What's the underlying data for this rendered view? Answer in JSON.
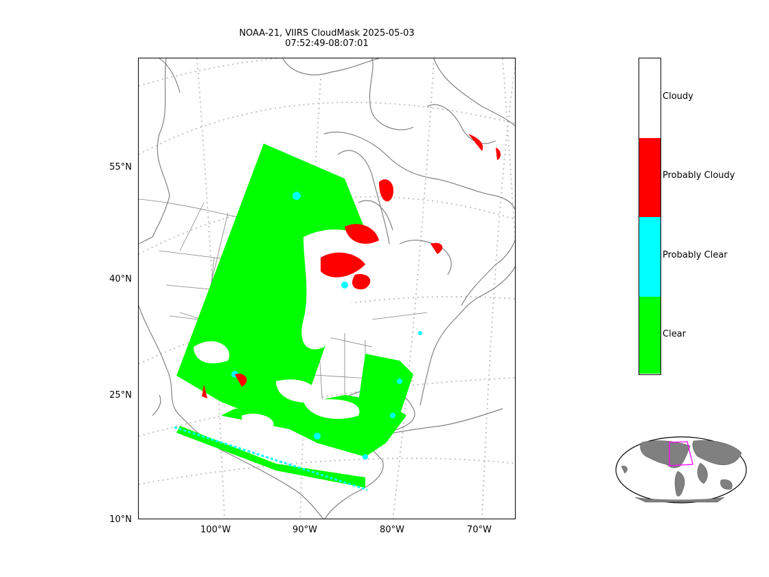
{
  "title_line1": "NOAA-21, VIIRS CloudMask 2025-05-03",
  "title_line2": "07:52:49-08:07:01",
  "lat_labels": [
    "55°N",
    "40°N",
    "25°N",
    "10°N"
  ],
  "lon_labels": [
    "100°W",
    "90°W",
    "80°W",
    "70°W"
  ],
  "legend": {
    "labels": [
      "Cloudy",
      "Probably Cloudy",
      "Probably Clear",
      "Clear"
    ],
    "colors": [
      "#ffffff",
      "#ff0000",
      "#00ffff",
      "#00ff00"
    ]
  },
  "colors": {
    "coast": "#808080",
    "graticule": "#c0c0c0",
    "globe_land": "#808080",
    "extent_box": "#ff00ff"
  },
  "icons": [
    "overview-globe-icon"
  ]
}
